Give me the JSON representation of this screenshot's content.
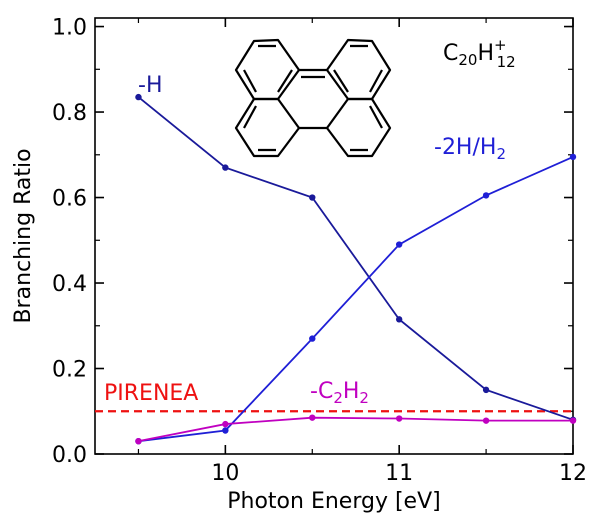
{
  "chart_data": {
    "type": "line",
    "xlabel": "Photon Energy [eV]",
    "ylabel": "Branching Ratio",
    "xlim": [
      9.25,
      12.0
    ],
    "ylim": [
      0.0,
      1.02
    ],
    "x_ticks": [
      10,
      11,
      12
    ],
    "y_ticks": [
      0.0,
      0.2,
      0.4,
      0.6,
      0.8,
      1.0
    ],
    "x_tick_labels": [
      "10",
      "11",
      "12"
    ],
    "y_tick_labels": [
      "0.0",
      "0.2",
      "0.4",
      "0.6",
      "0.8",
      "1.0"
    ],
    "grid": false,
    "series": [
      {
        "name": "-H",
        "color": "#1a1a9a",
        "x": [
          9.5,
          10.0,
          10.5,
          11.0,
          11.5,
          12.0
        ],
        "y": [
          0.835,
          0.67,
          0.6,
          0.315,
          0.15,
          0.08
        ]
      },
      {
        "name": "-2H/H2",
        "color": "#1f1fd6",
        "x": [
          9.5,
          10.0,
          10.5,
          11.0,
          11.5,
          12.0
        ],
        "y": [
          0.03,
          0.055,
          0.27,
          0.49,
          0.605,
          0.695
        ]
      },
      {
        "name": "-C2H2",
        "color": "#c000c0",
        "x": [
          9.5,
          10.0,
          10.5,
          11.0,
          11.5,
          12.0
        ],
        "y": [
          0.03,
          0.07,
          0.085,
          0.083,
          0.078,
          0.078
        ]
      }
    ],
    "reference_line": {
      "label": "PIRENEA",
      "y": 0.1,
      "color": "#ee1111",
      "style": "dashed"
    },
    "annotations": {
      "h_label": "-H",
      "h2_label_main": "-2H/H",
      "h2_label_sub": "2",
      "c2h2_prefix": "-C",
      "c2h2_sub1": "2",
      "c2h2_mid": "H",
      "c2h2_sub2": "2",
      "formula_main": "C",
      "formula_sub1": "20",
      "formula_mid": "H",
      "formula_sup": "+",
      "formula_sub2": "12",
      "pirenea": "PIRENEA"
    },
    "molecule_icon": "perylene-structure-icon"
  }
}
